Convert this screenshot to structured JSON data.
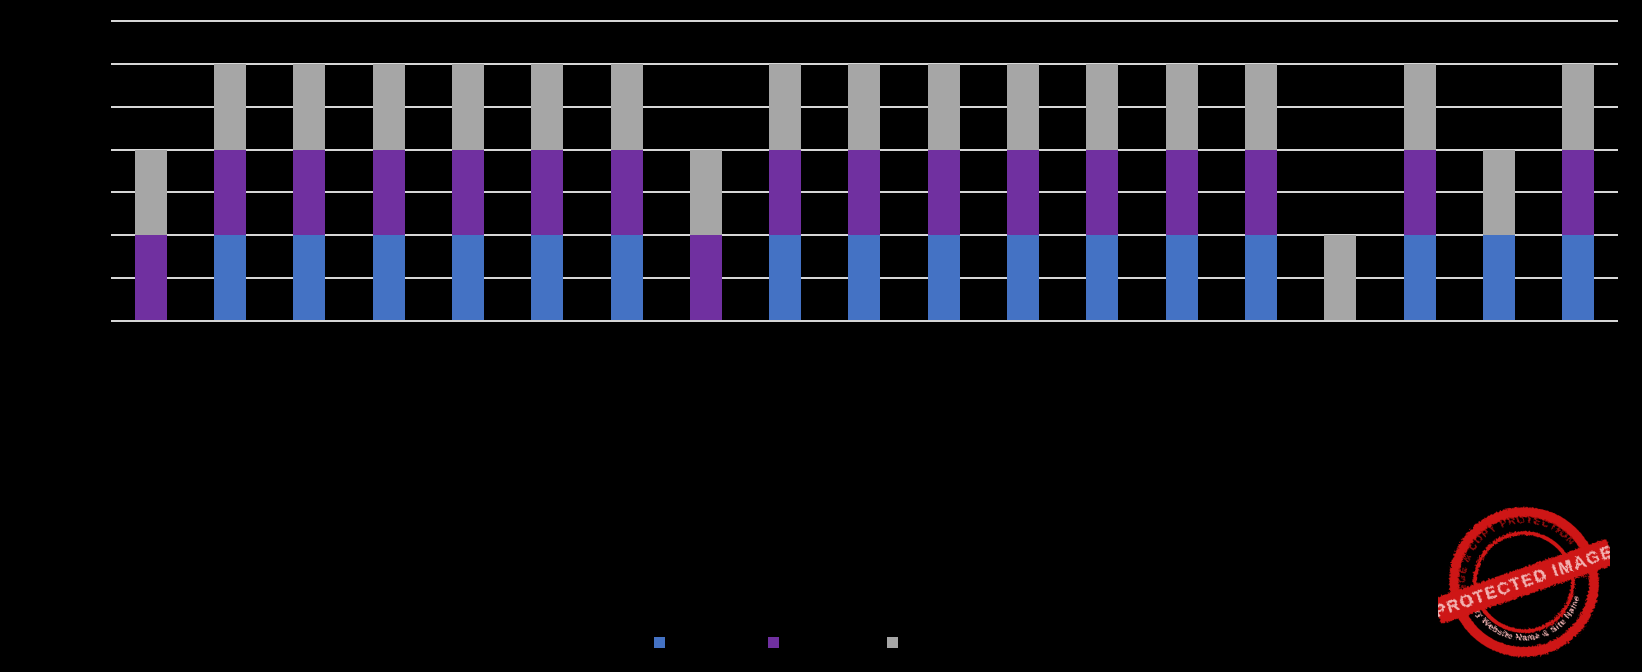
{
  "page": {
    "background_color": "#000000",
    "visible_text_note": "No chart text is legible: chart title, axis tick labels and legend labels are rendered black-on-black."
  },
  "chart_data": {
    "type": "bar",
    "stacked": true,
    "title": "",
    "xlabel": "",
    "ylabel": "",
    "n_categories": 19,
    "categories": [
      "",
      "",
      "",
      "",
      "",
      "",
      "",
      "",
      "",
      "",
      "",
      "",
      "",
      "",
      "",
      "",
      "",
      "",
      ""
    ],
    "series": [
      {
        "name": "blue",
        "color": "#4472C4",
        "values": [
          0,
          2,
          2,
          2,
          2,
          2,
          2,
          0,
          2,
          2,
          2,
          2,
          2,
          2,
          2,
          0,
          2,
          2,
          2
        ]
      },
      {
        "name": "purple",
        "color": "#7030A0",
        "values": [
          2,
          2,
          2,
          2,
          2,
          2,
          2,
          2,
          2,
          2,
          2,
          2,
          2,
          2,
          2,
          0,
          2,
          0,
          2
        ]
      },
      {
        "name": "gray",
        "color": "#A6A6A6",
        "values": [
          2,
          2,
          2,
          2,
          2,
          2,
          2,
          2,
          2,
          2,
          2,
          2,
          2,
          2,
          2,
          2,
          2,
          2,
          2
        ]
      }
    ],
    "ylim": [
      0,
      7
    ],
    "gridlines": {
      "count": 8,
      "step": 1,
      "color": "#D6D6D6",
      "grid": true
    },
    "legend_position": "bottom",
    "legend_entries": [
      {
        "swatch_color": "#4472C4",
        "label": ""
      },
      {
        "swatch_color": "#7030A0",
        "label": ""
      },
      {
        "swatch_color": "#A6A6A6",
        "label": ""
      }
    ],
    "text_visibility_note": "Axis labels, tick values and legend label text exist but are not visible (black text on black background); segment heights measured in gridline units."
  },
  "stamp": {
    "banner_text": "PROTECTED IMAGE",
    "arc_text_top": "IMAGE & COPY PROTECTION PLUGIN",
    "arc_text_bottom": "My Website Name & Site Name",
    "colors": {
      "red": "#CE1312",
      "pink": "#F2B2B2",
      "dark_red": "#9B1010"
    }
  }
}
